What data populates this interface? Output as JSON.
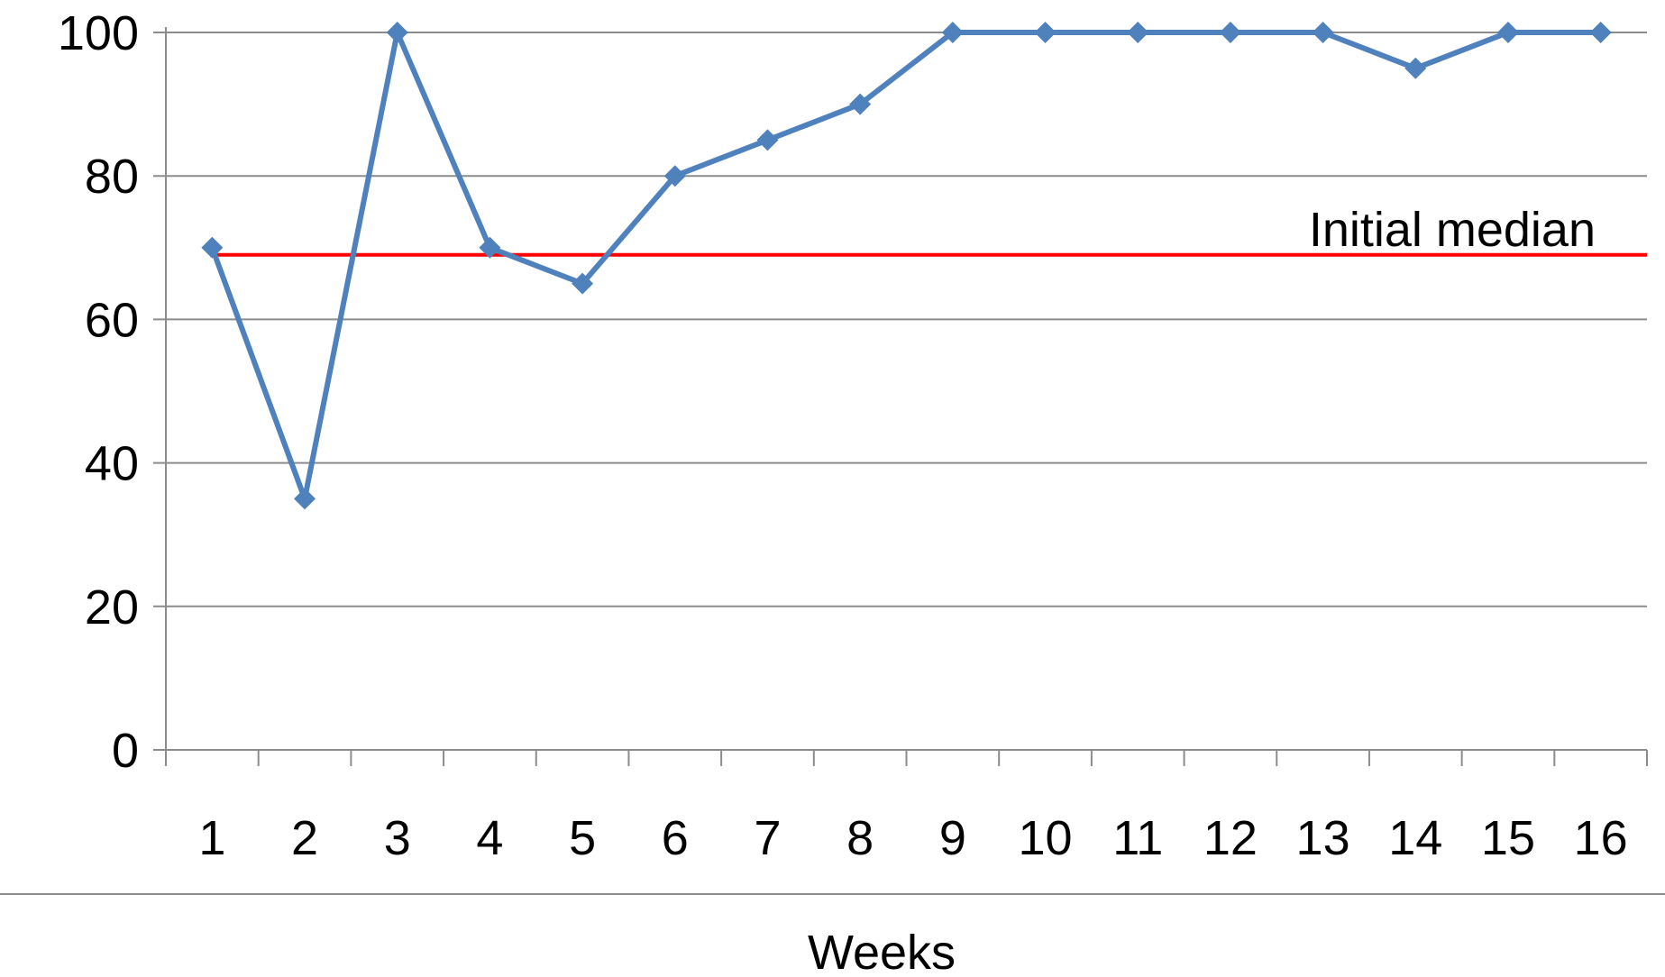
{
  "chart_data": {
    "type": "line",
    "x": [
      "1",
      "2",
      "3",
      "4",
      "5",
      "6",
      "7",
      "8",
      "9",
      "10",
      "11",
      "12",
      "13",
      "14",
      "15",
      "16"
    ],
    "series": [
      {
        "values": [
          70,
          35,
          100,
          70,
          65,
          80,
          85,
          90,
          100,
          100,
          100,
          100,
          100,
          95,
          100,
          100
        ],
        "color": "#4f81bd",
        "marker": "diamond"
      }
    ],
    "reference_line": {
      "label": "Initial median",
      "value": 69,
      "color": "#ff0000"
    },
    "xlabel": "Weeks",
    "ylabel": "",
    "ylim": [
      0,
      100
    ],
    "yticks": [
      "0",
      "20",
      "40",
      "60",
      "80",
      "100"
    ],
    "grid": true,
    "legend": "none"
  }
}
